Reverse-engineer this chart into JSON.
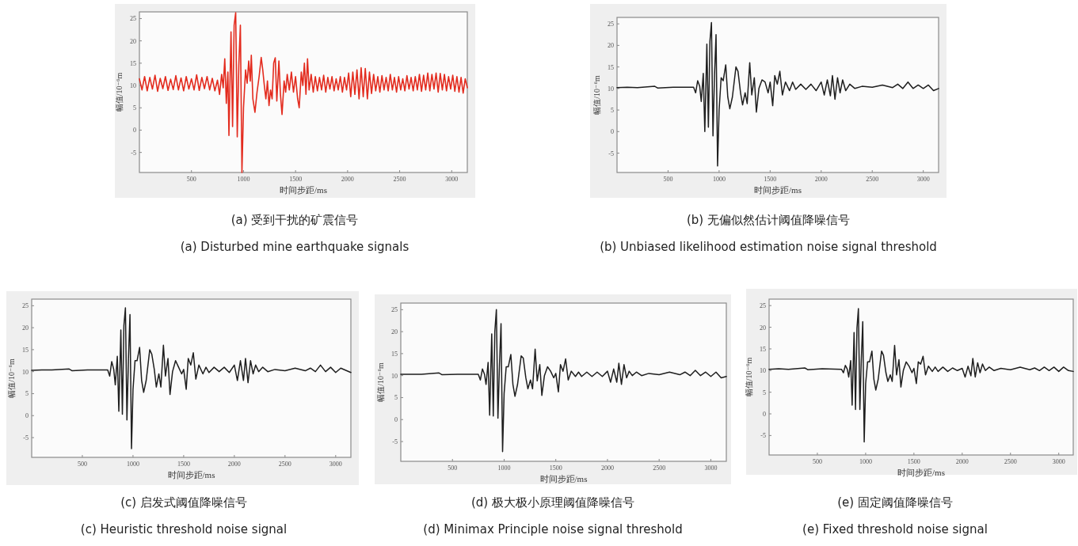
{
  "chart_data": [
    {
      "type": "line",
      "title": "(a) 受到干扰的矿震信号",
      "subtitle": "(a) Disturbed mine earthquake signals",
      "xlabel": "时间步距/ms",
      "ylabel": "幅值/10⁻⁶m",
      "xlim": [
        0,
        3150
      ],
      "ylim": [
        -9.5,
        26.5
      ],
      "xticks": [
        500,
        1000,
        1500,
        2000,
        2500,
        3000
      ],
      "yticks": [
        -5,
        0,
        5,
        10,
        15,
        20,
        25
      ],
      "series": [
        {
          "color": "#e32b1e",
          "x": [
            0,
            25,
            50,
            75,
            100,
            125,
            150,
            175,
            200,
            225,
            250,
            275,
            300,
            325,
            350,
            375,
            400,
            425,
            450,
            475,
            500,
            525,
            550,
            575,
            600,
            625,
            650,
            675,
            700,
            725,
            750,
            770,
            790,
            805,
            820,
            835,
            850,
            860,
            880,
            895,
            910,
            925,
            940,
            955,
            970,
            985,
            1000,
            1020,
            1035,
            1050,
            1065,
            1075,
            1090,
            1110,
            1130,
            1150,
            1170,
            1185,
            1200,
            1215,
            1230,
            1245,
            1260,
            1275,
            1290,
            1305,
            1320,
            1340,
            1355,
            1370,
            1390,
            1405,
            1420,
            1440,
            1460,
            1480,
            1500,
            1520,
            1535,
            1555,
            1570,
            1585,
            1600,
            1615,
            1630,
            1650,
            1670,
            1690,
            1710,
            1730,
            1750,
            1770,
            1790,
            1810,
            1830,
            1850,
            1870,
            1890,
            1910,
            1930,
            1950,
            1970,
            1990,
            2010,
            2030,
            2050,
            2070,
            2090,
            2110,
            2130,
            2150,
            2170,
            2190,
            2210,
            2230,
            2250,
            2270,
            2290,
            2310,
            2330,
            2350,
            2370,
            2390,
            2410,
            2430,
            2450,
            2470,
            2490,
            2510,
            2530,
            2550,
            2570,
            2590,
            2610,
            2630,
            2650,
            2670,
            2690,
            2710,
            2730,
            2750,
            2770,
            2790,
            2810,
            2830,
            2850,
            2870,
            2890,
            2910,
            2930,
            2950,
            2970,
            2990,
            3010,
            3030,
            3050,
            3070,
            3090,
            3110,
            3130,
            3150
          ],
          "values": [
            11.5,
            9,
            12,
            8.8,
            11.8,
            9.2,
            12.3,
            8.7,
            11.6,
            9.3,
            12,
            8.9,
            11.4,
            9.1,
            12.2,
            9,
            11.7,
            8.8,
            12,
            9.2,
            11.5,
            9,
            12.4,
            8.9,
            11.8,
            9.3,
            12,
            9,
            11.6,
            8.8,
            11.2,
            8,
            12.5,
            9.5,
            16,
            6,
            13,
            -1.2,
            22,
            0.8,
            23.5,
            26.3,
            -1.5,
            14.5,
            23.5,
            -9.5,
            5,
            13.5,
            10.5,
            15.5,
            11,
            16.8,
            7,
            4,
            8.5,
            12,
            16.3,
            13.5,
            10,
            7,
            11,
            5.5,
            9,
            7,
            15,
            16.2,
            6.5,
            15.5,
            8,
            3.5,
            11,
            8.5,
            12.5,
            9,
            13,
            8.5,
            12,
            7,
            5,
            13,
            10,
            15,
            8,
            16,
            9,
            12.5,
            8.5,
            12,
            8.8,
            11.8,
            9,
            12.3,
            8.5,
            11.8,
            9.2,
            12,
            8.8,
            11.5,
            9,
            12,
            8.5,
            11.8,
            9,
            12.8,
            7.5,
            13,
            8,
            13.5,
            7,
            14,
            7.5,
            13.8,
            7,
            13,
            8.2,
            12.5,
            8.8,
            12,
            8.5,
            12.2,
            9,
            11.8,
            8.8,
            12.5,
            9,
            11.8,
            8.5,
            12,
            9,
            11.5,
            8.8,
            12.2,
            9.2,
            11.8,
            8.8,
            12,
            9,
            12.5,
            8.7,
            12.3,
            9,
            12.8,
            8.8,
            12.5,
            9.2,
            12.8,
            8.5,
            12.7,
            9,
            12.5,
            8.8,
            12,
            9.2,
            12.3,
            8.7,
            12,
            8.5,
            11.8,
            8.3,
            11.5,
            9.5
          ]
        }
      ]
    },
    {
      "type": "line",
      "title": "(b) 无偏似然估计阈值降噪信号",
      "subtitle": "(b) Unbiased likelihood estimation noise signal threshold",
      "xlabel": "时间步距/ms",
      "ylabel": "幅值/10⁻⁶m",
      "xlim": [
        0,
        3150
      ],
      "ylim": [
        -9.5,
        26.5
      ],
      "xticks": [
        500,
        1000,
        1500,
        2000,
        2500,
        3000
      ],
      "yticks": [
        -5,
        0,
        5,
        10,
        15,
        20,
        25
      ],
      "series": [
        {
          "color": "#1e1e1e",
          "x": [
            0,
            100,
            200,
            370,
            400,
            550,
            750,
            770,
            790,
            810,
            825,
            845,
            860,
            880,
            895,
            910,
            925,
            940,
            955,
            970,
            985,
            1000,
            1020,
            1040,
            1065,
            1085,
            1105,
            1130,
            1165,
            1185,
            1210,
            1230,
            1255,
            1275,
            1300,
            1320,
            1345,
            1365,
            1390,
            1420,
            1450,
            1480,
            1500,
            1525,
            1545,
            1570,
            1595,
            1620,
            1650,
            1690,
            1720,
            1750,
            1800,
            1850,
            1900,
            1950,
            2000,
            2030,
            2060,
            2090,
            2110,
            2135,
            2160,
            2185,
            2210,
            2240,
            2280,
            2330,
            2400,
            2500,
            2600,
            2700,
            2750,
            2800,
            2850,
            2900,
            2950,
            3000,
            3050,
            3100,
            3150
          ],
          "values": [
            10.2,
            10.3,
            10.2,
            10.5,
            10.1,
            10.3,
            10.3,
            9,
            11.8,
            10.5,
            7,
            13.5,
            0,
            20.3,
            1,
            21,
            25.3,
            -1,
            13,
            22.5,
            -8,
            5,
            12.5,
            11.8,
            15.5,
            8,
            5.3,
            8,
            15,
            14,
            9,
            6.2,
            9,
            6.5,
            16,
            8.5,
            12.5,
            4.5,
            10,
            12,
            11.5,
            9,
            11.5,
            6,
            13,
            11,
            14,
            8.5,
            11.5,
            9.5,
            11.5,
            9.8,
            11,
            9.8,
            11,
            9.5,
            11.5,
            8.5,
            12,
            8.3,
            13,
            7.5,
            12.5,
            9,
            12,
            9.5,
            11,
            10,
            10.5,
            10.3,
            10.8,
            10.2,
            11,
            10,
            11.5,
            10,
            10.8,
            10,
            10.8,
            9.5,
            10
          ]
        }
      ]
    },
    {
      "type": "line",
      "title": "(c) 启发式阈值降噪信号",
      "subtitle": "(c) Heuristic threshold noise signal",
      "xlabel": "时间步距/ms",
      "ylabel": "幅值/10⁻⁶m",
      "xlim": [
        0,
        3150
      ],
      "ylim": [
        -9.5,
        26.5
      ],
      "xticks": [
        500,
        1000,
        1500,
        2000,
        2500,
        3000
      ],
      "yticks": [
        -5,
        0,
        5,
        10,
        15,
        20,
        25
      ],
      "series": [
        {
          "color": "#1e1e1e",
          "x": [
            0,
            100,
            200,
            370,
            400,
            550,
            750,
            770,
            790,
            810,
            825,
            845,
            860,
            880,
            895,
            910,
            925,
            940,
            955,
            970,
            985,
            1000,
            1020,
            1040,
            1065,
            1085,
            1105,
            1130,
            1165,
            1185,
            1210,
            1230,
            1255,
            1275,
            1300,
            1320,
            1345,
            1365,
            1390,
            1420,
            1450,
            1480,
            1500,
            1525,
            1545,
            1570,
            1595,
            1620,
            1650,
            1690,
            1720,
            1750,
            1800,
            1850,
            1900,
            1950,
            2000,
            2030,
            2060,
            2090,
            2110,
            2135,
            2160,
            2185,
            2210,
            2240,
            2280,
            2330,
            2400,
            2500,
            2600,
            2700,
            2750,
            2800,
            2850,
            2900,
            2950,
            3000,
            3050,
            3100,
            3150
          ],
          "values": [
            10.3,
            10.4,
            10.4,
            10.6,
            10.2,
            10.4,
            10.4,
            9,
            12.3,
            10.5,
            7,
            13.5,
            1,
            19.5,
            0.3,
            20.5,
            24.5,
            -1,
            13,
            23,
            -7.5,
            6,
            12.5,
            12.5,
            15.5,
            8,
            5.3,
            8,
            15,
            14,
            10.5,
            6.5,
            9.5,
            6.5,
            16,
            9,
            13,
            4.8,
            10,
            12.5,
            11,
            9.5,
            10.5,
            6,
            13,
            11.5,
            14.3,
            8.3,
            11.5,
            9.5,
            11,
            9.8,
            11,
            10,
            11,
            9.8,
            11.5,
            8,
            12.5,
            8,
            13,
            7.5,
            12.5,
            9.5,
            11.5,
            10,
            11,
            10,
            10.5,
            10.2,
            10.8,
            10.2,
            10.8,
            10,
            11.5,
            10,
            11,
            9.8,
            10.8,
            10.3,
            9.8
          ]
        }
      ]
    },
    {
      "type": "line",
      "title": "(d) 极大极小原理阈值降噪信号",
      "subtitle": "(d) Minimax Principle noise signal threshold",
      "xlabel": "时间步距/ms",
      "ylabel": "幅值/10⁻⁶m",
      "xlim": [
        0,
        3150
      ],
      "ylim": [
        -9.5,
        26.5
      ],
      "xticks": [
        500,
        1000,
        1500,
        2000,
        2500,
        3000
      ],
      "yticks": [
        -5,
        0,
        5,
        10,
        15,
        20,
        25
      ],
      "series": [
        {
          "color": "#1e1e1e",
          "x": [
            0,
            100,
            200,
            370,
            400,
            550,
            750,
            770,
            790,
            810,
            825,
            845,
            860,
            880,
            895,
            910,
            925,
            940,
            955,
            970,
            985,
            1000,
            1020,
            1040,
            1065,
            1085,
            1105,
            1130,
            1165,
            1185,
            1210,
            1230,
            1255,
            1275,
            1300,
            1320,
            1345,
            1365,
            1390,
            1420,
            1450,
            1480,
            1500,
            1525,
            1545,
            1570,
            1595,
            1620,
            1650,
            1690,
            1720,
            1750,
            1800,
            1850,
            1900,
            1950,
            2000,
            2030,
            2060,
            2090,
            2110,
            2135,
            2160,
            2185,
            2210,
            2240,
            2280,
            2330,
            2400,
            2500,
            2600,
            2700,
            2750,
            2800,
            2850,
            2900,
            2950,
            3000,
            3050,
            3100,
            3150
          ],
          "values": [
            10.3,
            10.3,
            10.3,
            10.6,
            10.2,
            10.3,
            10.3,
            9,
            11.5,
            10.3,
            8,
            13,
            1,
            19.5,
            0.8,
            20,
            25,
            0.3,
            12.5,
            21.8,
            -7.3,
            6,
            12,
            12,
            14.8,
            8,
            5.3,
            8,
            14.5,
            14,
            9.5,
            7,
            9,
            7,
            16,
            8.8,
            12.5,
            5.5,
            10,
            12,
            11,
            9.5,
            10.5,
            6.3,
            12.5,
            11,
            13.8,
            9,
            11,
            9.8,
            10.8,
            9.8,
            10.8,
            9.8,
            10.8,
            9.8,
            11,
            8.5,
            11.5,
            8.5,
            12.8,
            8,
            12.5,
            9.5,
            11,
            10,
            10.8,
            10,
            10.5,
            10.2,
            10.8,
            10.2,
            10.8,
            10,
            11.2,
            10,
            10.8,
            9.8,
            10.8,
            9.5,
            9.8
          ]
        }
      ]
    },
    {
      "type": "line",
      "title": "(e) 固定阈值降噪信号",
      "subtitle": "(e) Fixed threshold noise signal",
      "xlabel": "时间步距/ms",
      "ylabel": "幅值/10⁻⁶m",
      "xlim": [
        0,
        3150
      ],
      "ylim": [
        -9.5,
        26.5
      ],
      "xticks": [
        500,
        1000,
        1500,
        2000,
        2500,
        3000
      ],
      "yticks": [
        -5,
        0,
        5,
        10,
        15,
        20,
        25
      ],
      "series": [
        {
          "color": "#1e1e1e",
          "x": [
            0,
            100,
            200,
            370,
            400,
            550,
            750,
            770,
            790,
            810,
            825,
            845,
            860,
            880,
            895,
            910,
            925,
            940,
            955,
            970,
            985,
            1000,
            1020,
            1040,
            1065,
            1085,
            1105,
            1130,
            1165,
            1185,
            1210,
            1230,
            1255,
            1275,
            1300,
            1320,
            1345,
            1365,
            1390,
            1420,
            1450,
            1480,
            1500,
            1525,
            1545,
            1570,
            1595,
            1620,
            1650,
            1690,
            1720,
            1750,
            1800,
            1850,
            1900,
            1950,
            2000,
            2030,
            2060,
            2090,
            2110,
            2135,
            2160,
            2185,
            2210,
            2240,
            2280,
            2330,
            2400,
            2500,
            2600,
            2700,
            2750,
            2800,
            2850,
            2900,
            2950,
            3000,
            3050,
            3100,
            3150
          ],
          "values": [
            10.3,
            10.4,
            10.3,
            10.6,
            10.2,
            10.4,
            10.3,
            9.5,
            11.2,
            10.3,
            8.5,
            12.3,
            2,
            18.8,
            1,
            19.8,
            24.3,
            1,
            12.5,
            21.3,
            -6.5,
            7,
            12,
            12,
            14.5,
            8,
            5.5,
            8,
            14.5,
            13.5,
            9.5,
            7.5,
            9,
            7.5,
            15.8,
            9,
            12.5,
            6.2,
            10,
            12,
            11,
            9.5,
            10.5,
            7,
            12,
            11.5,
            13.3,
            9,
            11,
            9.8,
            10.8,
            9.8,
            10.8,
            9.8,
            10.6,
            10,
            10.5,
            8.5,
            11,
            8.8,
            12.8,
            8.5,
            11.8,
            9.5,
            11.5,
            10,
            10.8,
            10,
            10.5,
            10.2,
            10.8,
            10.2,
            10.6,
            10,
            10.8,
            10,
            10.8,
            9.8,
            10.8,
            10,
            9.8
          ]
        }
      ]
    }
  ]
}
